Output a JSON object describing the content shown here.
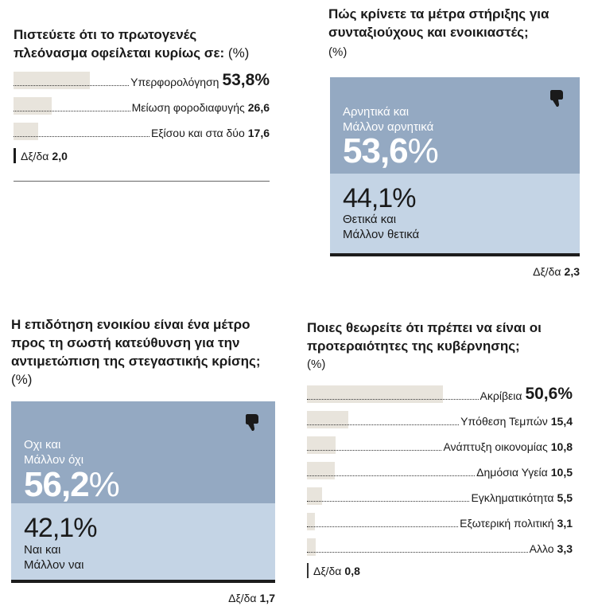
{
  "chart_data": [
    {
      "type": "bar",
      "title": "Πιστεύετε ότι το πρωτογενές πλεόνασμα οφείλεται κυρίως σε:",
      "unit": "(%)",
      "categories": [
        "Υπερφορολόγηση",
        "Μείωση φοροδιαφυγής",
        "Εξίσου και στα δύο"
      ],
      "values": [
        53.8,
        26.6,
        17.6
      ],
      "value_labels": [
        "53,8%",
        "26,6",
        "17,6"
      ],
      "residual_label": "Δξ/δα",
      "residual_value": "2,0",
      "bar_color": "#e8e4dc"
    },
    {
      "type": "bar",
      "subtype": "stacked",
      "title": "Πώς κρίνετε τα μέτρα στήριξης για συνταξιούχους και ενοικιαστές;",
      "unit": "(%)",
      "series": [
        {
          "name": "Αρνητικά και Μάλλον αρνητικά",
          "label_lines": [
            "Αρνητικά και",
            "Μάλλον αρνητικά"
          ],
          "value": 53.6,
          "value_text": "53,6",
          "color": "#94a9c2",
          "icon": "thumbs-down-icon"
        },
        {
          "name": "Θετικά και Μάλλον θετικά",
          "label_lines": [
            "Θετικά και",
            "Μάλλον θετικά"
          ],
          "value": 44.1,
          "value_text": "44,1",
          "color": "#c4d4e5"
        }
      ],
      "residual_label": "Δξ/δα",
      "residual_value": "2,3"
    },
    {
      "type": "bar",
      "subtype": "stacked",
      "title": "Η επιδότηση ενοικίου είναι ένα μέτρο προς τη σωστή κατεύθυνση για την αντιμετώπιση της στεγαστικής κρίσης;",
      "unit": "(%)",
      "series": [
        {
          "name": "Οχι και Μάλλον όχι",
          "label_lines": [
            "Οχι και",
            "Μάλλον όχι"
          ],
          "value": 56.2,
          "value_text": "56,2",
          "color": "#94a9c2",
          "icon": "thumbs-down-icon"
        },
        {
          "name": "Ναι και Μάλλον ναι",
          "label_lines": [
            "Ναι και",
            "Μάλλον ναι"
          ],
          "value": 42.1,
          "value_text": "42,1",
          "color": "#c4d4e5"
        }
      ],
      "residual_label": "Δξ/δα",
      "residual_value": "1,7"
    },
    {
      "type": "bar",
      "title": "Ποιες θεωρείτε ότι πρέπει να είναι οι προτεραιότητες της κυβέρνησης;",
      "unit": "(%)",
      "categories": [
        "Ακρίβεια",
        "Υπόθεση Τεμπών",
        "Ανάπτυξη οικονομίας",
        "Δημόσια Υγεία",
        "Εγκληματικότητα",
        "Εξωτερική πολιτική",
        "Αλλο"
      ],
      "values": [
        50.6,
        15.4,
        10.8,
        10.5,
        5.5,
        3.1,
        3.3
      ],
      "value_labels": [
        "50,6%",
        "15,4",
        "10,8",
        "10,5",
        "5,5",
        "3,1",
        "3,3"
      ],
      "residual_label": "Δξ/δα",
      "residual_value": "0,8",
      "bar_color": "#e8e4dc"
    }
  ]
}
